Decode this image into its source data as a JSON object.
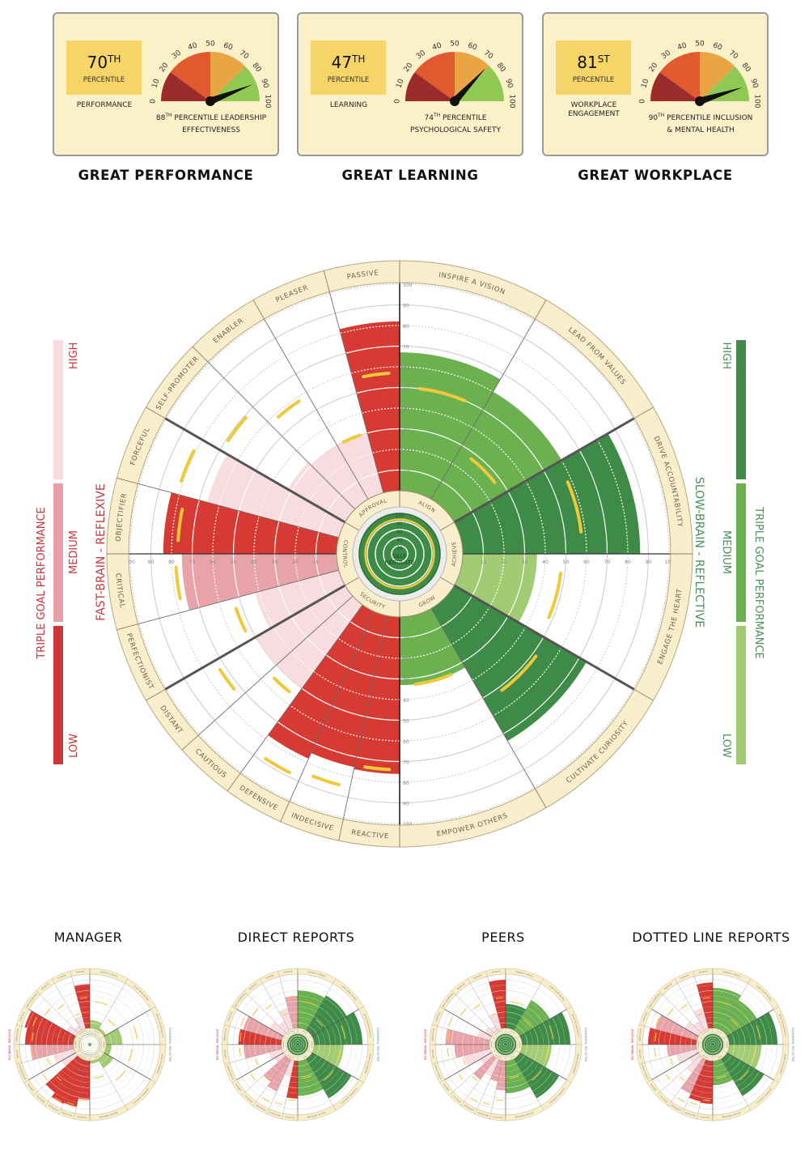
{
  "cards": [
    {
      "percentile": "70",
      "percentile_suffix": "TH",
      "percentile_label": "PERCENTILE",
      "metric": "PERFORMANCE",
      "gauge_value": 88,
      "gauge_suffix": "TH",
      "caption_line1": " PERCENTILE LEADERSHIP",
      "caption_line2": "EFFECTIVENESS",
      "title": "GREAT PERFORMANCE"
    },
    {
      "percentile": "47",
      "percentile_suffix": "TH",
      "percentile_label": "PERCENTILE",
      "metric": "LEARNING",
      "gauge_value": 74,
      "gauge_suffix": "TH",
      "caption_line1": " PERCENTILE",
      "caption_line2": "PSYCHOLOGICAL SAFETY",
      "title": "GREAT LEARNING"
    },
    {
      "percentile": "81",
      "percentile_suffix": "ST",
      "percentile_label": "PERCENTILE",
      "metric": "WORKPLACE ENGAGEMENT",
      "gauge_value": 90,
      "gauge_suffix": "TH",
      "caption_line1": " PERCENTILE INCLUSION",
      "caption_line2": "& MENTAL HEALTH",
      "title": "GREAT WORKPLACE"
    }
  ],
  "gauge": {
    "ticks": [
      "0",
      "10",
      "20",
      "30",
      "40",
      "50",
      "60",
      "70",
      "80",
      "90",
      "100"
    ],
    "zones": [
      {
        "from": 0,
        "to": 20,
        "color": "#9c2b2b"
      },
      {
        "from": 20,
        "to": 50,
        "color": "#e0592f"
      },
      {
        "from": 50,
        "to": 75,
        "color": "#eba443"
      },
      {
        "from": 75,
        "to": 100,
        "color": "#8fc853"
      }
    ]
  },
  "legend": {
    "left": {
      "title": "TRIPLE GOAL PERFORMANCE",
      "high": "HIGH",
      "medium": "MEDIUM",
      "low": "LOW",
      "side_label": "FAST-BRAIN - REFLEXIVE",
      "color": "#c9363b"
    },
    "right": {
      "title": "TRIPLE GOAL PERFORMANCE",
      "high": "HIGH",
      "medium": "MEDIUM",
      "low": "LOW",
      "side_label": "SLOW-BRAIN - REFLECTIVE",
      "color": "#4b8f5b"
    }
  },
  "colors": {
    "fast": {
      "low": "#d63a33",
      "medium": "#e8a3a9",
      "high": "#f7dce0"
    },
    "slow": {
      "high": "#3e8b48",
      "medium": "#6cb14f",
      "low": "#a2cc73"
    },
    "benchmark": "#f0c93a",
    "ring": "#f8eecb"
  },
  "wheel": {
    "sectors": [
      {
        "name": "ALIGN",
        "side": "slow",
        "segments": [
          "INSPIRE A VISION",
          "LEAD FROM VALUES"
        ]
      },
      {
        "name": "ACHIEVE",
        "side": "slow",
        "segments": [
          "DRIVE ACCOUNTABILITY",
          "ENGAGE THE HEART"
        ]
      },
      {
        "name": "GROW",
        "side": "slow",
        "segments": [
          "CULTIVATE CURIOSITY",
          "EMPOWER OTHERS"
        ]
      },
      {
        "name": "SECURITY",
        "side": "fast",
        "segments": [
          "REACTIVE",
          "INDECISIVE",
          "DEFENSIVE",
          "CAUTIOUS",
          "DISTANT"
        ]
      },
      {
        "name": "CONTROL",
        "side": "fast",
        "segments": [
          "PERFECTIONIST",
          "CRITICAL",
          "OBJECTIFIER",
          "FORCEFUL"
        ]
      },
      {
        "name": "APPROVAL",
        "side": "fast",
        "segments": [
          "SELF-PROMOTER",
          "ENABLER",
          "PLEASER",
          "PASSIVE"
        ]
      }
    ],
    "ticks": [
      "10",
      "20",
      "30",
      "40",
      "50",
      "60",
      "70",
      "80",
      "90",
      "100"
    ],
    "core_label_1": "SELF",
    "core_label_2": "REGULATE",
    "core_ticks": [
      "20",
      "40",
      "60",
      "80",
      "100"
    ]
  },
  "chart_data": [
    {
      "type": "bar",
      "id": "main",
      "title": "",
      "ylim": [
        0,
        100
      ],
      "values": [
        67,
        60,
        86,
        36,
        74,
        33,
        76,
        75,
        78,
        50,
        50,
        42,
        75,
        84,
        66,
        32,
        30,
        30,
        82
      ],
      "levels": [
        "medium",
        "medium",
        "high",
        "low",
        "high",
        "medium",
        "low",
        "low",
        "low",
        "high",
        "high",
        "high",
        "medium",
        "low",
        "high",
        "high",
        "high",
        "high",
        "low"
      ],
      "benchmark": [
        50,
        27,
        58,
        48,
        52,
        33,
        74,
        85,
        88,
        55,
        73,
        53,
        78,
        77,
        81,
        69,
        58,
        30,
        57
      ],
      "core": {
        "value": 100,
        "level": "high",
        "benchmark": 85
      }
    },
    {
      "type": "bar",
      "id": "manager",
      "title": "MANAGER",
      "ylim": [
        0,
        100
      ],
      "values": [
        15,
        5,
        30,
        10,
        20,
        5,
        72,
        88,
        90,
        80,
        30,
        40,
        80,
        90,
        95,
        20,
        10,
        25,
        82
      ],
      "levels": [
        "low",
        "low",
        "low",
        "low",
        "low",
        "low",
        "low",
        "low",
        "low",
        "low",
        "high",
        "high",
        "medium",
        "low",
        "low",
        "high",
        "high",
        "high",
        "low"
      ],
      "benchmark": [
        50,
        27,
        58,
        48,
        52,
        33,
        74,
        85,
        88,
        55,
        73,
        53,
        78,
        77,
        81,
        69,
        58,
        30,
        57
      ],
      "core": {
        "value": 15,
        "level": "medium",
        "benchmark": 85
      }
    },
    {
      "type": "bar",
      "id": "direct-reports",
      "title": "DIRECT REPORTS",
      "ylim": [
        0,
        100
      ],
      "values": [
        70,
        75,
        90,
        55,
        85,
        65,
        70,
        30,
        65,
        55,
        20,
        25,
        70,
        80,
        75,
        30,
        20,
        40,
        60
      ],
      "levels": [
        "medium",
        "high",
        "high",
        "low",
        "high",
        "medium",
        "low",
        "high",
        "medium",
        "medium",
        "high",
        "high",
        "medium",
        "low",
        "medium",
        "high",
        "high",
        "high",
        "medium"
      ],
      "benchmark": [
        50,
        27,
        58,
        48,
        52,
        33,
        74,
        85,
        88,
        55,
        73,
        53,
        78,
        77,
        81,
        69,
        58,
        30,
        57
      ],
      "core": {
        "value": 100,
        "level": "high",
        "benchmark": 85
      }
    },
    {
      "type": "bar",
      "id": "peers",
      "title": "PEERS",
      "ylim": [
        0,
        100
      ],
      "values": [
        45,
        65,
        90,
        55,
        85,
        60,
        55,
        40,
        35,
        50,
        25,
        50,
        65,
        82,
        25,
        15,
        10,
        30,
        90
      ],
      "levels": [
        "high",
        "medium",
        "high",
        "low",
        "high",
        "medium",
        "medium",
        "medium",
        "high",
        "medium",
        "high",
        "high",
        "medium",
        "medium",
        "high",
        "high",
        "high",
        "high",
        "low"
      ],
      "benchmark": [
        50,
        27,
        58,
        48,
        52,
        33,
        74,
        85,
        88,
        55,
        73,
        53,
        78,
        77,
        81,
        69,
        58,
        30,
        57
      ],
      "core": {
        "value": 100,
        "level": "high",
        "benchmark": 85
      }
    },
    {
      "type": "bar",
      "id": "dotted-line-reports",
      "title": "DOTTED LINE REPORTS",
      "ylim": [
        0,
        100
      ],
      "values": [
        75,
        65,
        90,
        60,
        80,
        45,
        80,
        78,
        70,
        35,
        20,
        40,
        55,
        90,
        80,
        30,
        20,
        40,
        85
      ],
      "levels": [
        "medium",
        "medium",
        "high",
        "low",
        "high",
        "medium",
        "low",
        "low",
        "medium",
        "high",
        "high",
        "high",
        "medium",
        "low",
        "medium",
        "high",
        "high",
        "high",
        "low"
      ],
      "benchmark": [
        50,
        27,
        58,
        48,
        52,
        33,
        74,
        85,
        88,
        55,
        73,
        53,
        78,
        77,
        81,
        69,
        58,
        30,
        57
      ],
      "core": {
        "value": 100,
        "level": "high",
        "benchmark": 85
      }
    }
  ]
}
